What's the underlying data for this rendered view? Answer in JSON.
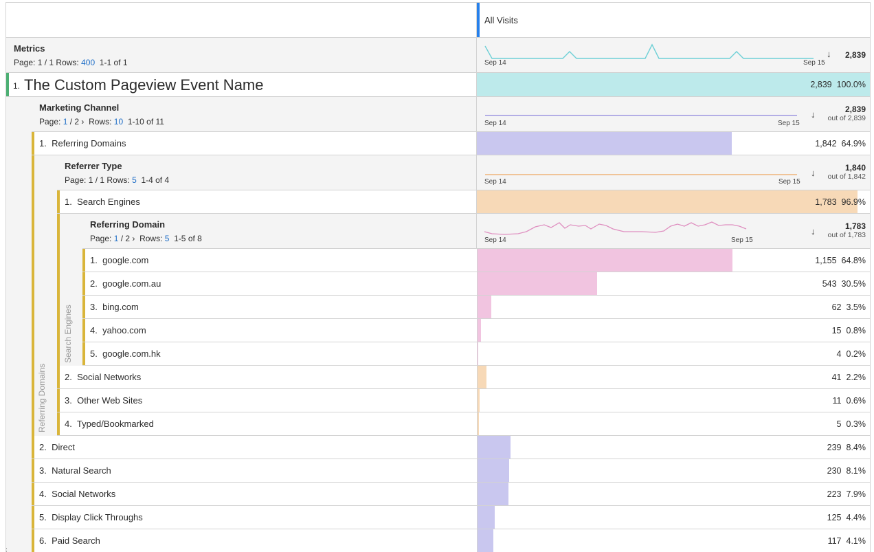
{
  "column_header": "All Visits",
  "metrics": {
    "title": "Metrics",
    "page_label": "Page:",
    "page": "1 / 1",
    "rows_label": "Rows:",
    "rows": "400",
    "range": "1-1 of 1",
    "total": "2,839",
    "date_start": "Sep 14",
    "date_end": "Sep 15"
  },
  "event": {
    "index": "1.",
    "name": "The Custom Pageview Event Name",
    "value": "2,839",
    "pct": "100.0%",
    "fill": 1.0,
    "color": "#bdeaeb"
  },
  "marketing_channel": {
    "title": "Marketing Channel",
    "page_label": "Page:",
    "page_cur": "1",
    "page_total": "/ 2",
    "rows_label": "Rows:",
    "rows": "10",
    "range": "1-10 of 11",
    "total": "2,839",
    "out_of": "out of 2,839",
    "date_start": "Sep 14",
    "date_end": "Sep 15",
    "gutter_label": "Referring Domains"
  },
  "referring_domains_row": {
    "index": "1.",
    "name": "Referring Domains",
    "value": "1,842",
    "pct": "64.9%",
    "fill": 0.649,
    "color": "#c9c7ef"
  },
  "referrer_type": {
    "title": "Referrer Type",
    "page_label": "Page:",
    "page": "1 / 1",
    "rows_label": "Rows:",
    "rows": "5",
    "range": "1-4 of 4",
    "total": "1,840",
    "out_of": "out of 1,842",
    "date_start": "Sep 14",
    "date_end": "Sep 15",
    "gutter_label": "Search Engines"
  },
  "search_engines_row": {
    "index": "1.",
    "name": "Search Engines",
    "value": "1,783",
    "pct": "96.9%",
    "fill": 0.969,
    "color": "#f7d9b7"
  },
  "referring_domain": {
    "title": "Referring Domain",
    "page_label": "Page:",
    "page_cur": "1",
    "page_total": "/ 2",
    "rows_label": "Rows:",
    "rows": "5",
    "range": "1-5 of 8",
    "total": "1,783",
    "out_of": "out of 1,783",
    "date_start": "Sep 14",
    "date_end": "Sep 15"
  },
  "domain_rows": [
    {
      "index": "1.",
      "name": "google.com",
      "value": "1,155",
      "pct": "64.8%",
      "fill": 0.648
    },
    {
      "index": "2.",
      "name": "google.com.au",
      "value": "543",
      "pct": "30.5%",
      "fill": 0.305
    },
    {
      "index": "3.",
      "name": "bing.com",
      "value": "62",
      "pct": "3.5%",
      "fill": 0.035
    },
    {
      "index": "4.",
      "name": "yahoo.com",
      "value": "15",
      "pct": "0.8%",
      "fill": 0.008
    },
    {
      "index": "5.",
      "name": "google.com.hk",
      "value": "4",
      "pct": "0.2%",
      "fill": 0.002
    }
  ],
  "referrer_rows": [
    {
      "index": "2.",
      "name": "Social Networks",
      "value": "41",
      "pct": "2.2%",
      "fill": 0.022
    },
    {
      "index": "3.",
      "name": "Other Web Sites",
      "value": "11",
      "pct": "0.6%",
      "fill": 0.006
    },
    {
      "index": "4.",
      "name": "Typed/Bookmarked",
      "value": "5",
      "pct": "0.3%",
      "fill": 0.003
    }
  ],
  "channel_rows": [
    {
      "index": "2.",
      "name": "Direct",
      "value": "239",
      "pct": "8.4%",
      "fill": 0.084
    },
    {
      "index": "3.",
      "name": "Natural Search",
      "value": "230",
      "pct": "8.1%",
      "fill": 0.081
    },
    {
      "index": "4.",
      "name": "Social Networks",
      "value": "223",
      "pct": "7.9%",
      "fill": 0.079
    },
    {
      "index": "5.",
      "name": "Display Click Throughs",
      "value": "125",
      "pct": "4.4%",
      "fill": 0.044
    },
    {
      "index": "6.",
      "name": "Paid Search",
      "value": "117",
      "pct": "4.1%",
      "fill": 0.041
    }
  ],
  "colors": {
    "domain_bar": "#f1c4e0",
    "referrer_bar": "#f7d9b7",
    "channel_bar": "#c9c7ef",
    "stripe": "#d9b53a",
    "event_stripe": "#4caf73",
    "accent": "#2680eb"
  },
  "outer_gutter_label": "ew"
}
